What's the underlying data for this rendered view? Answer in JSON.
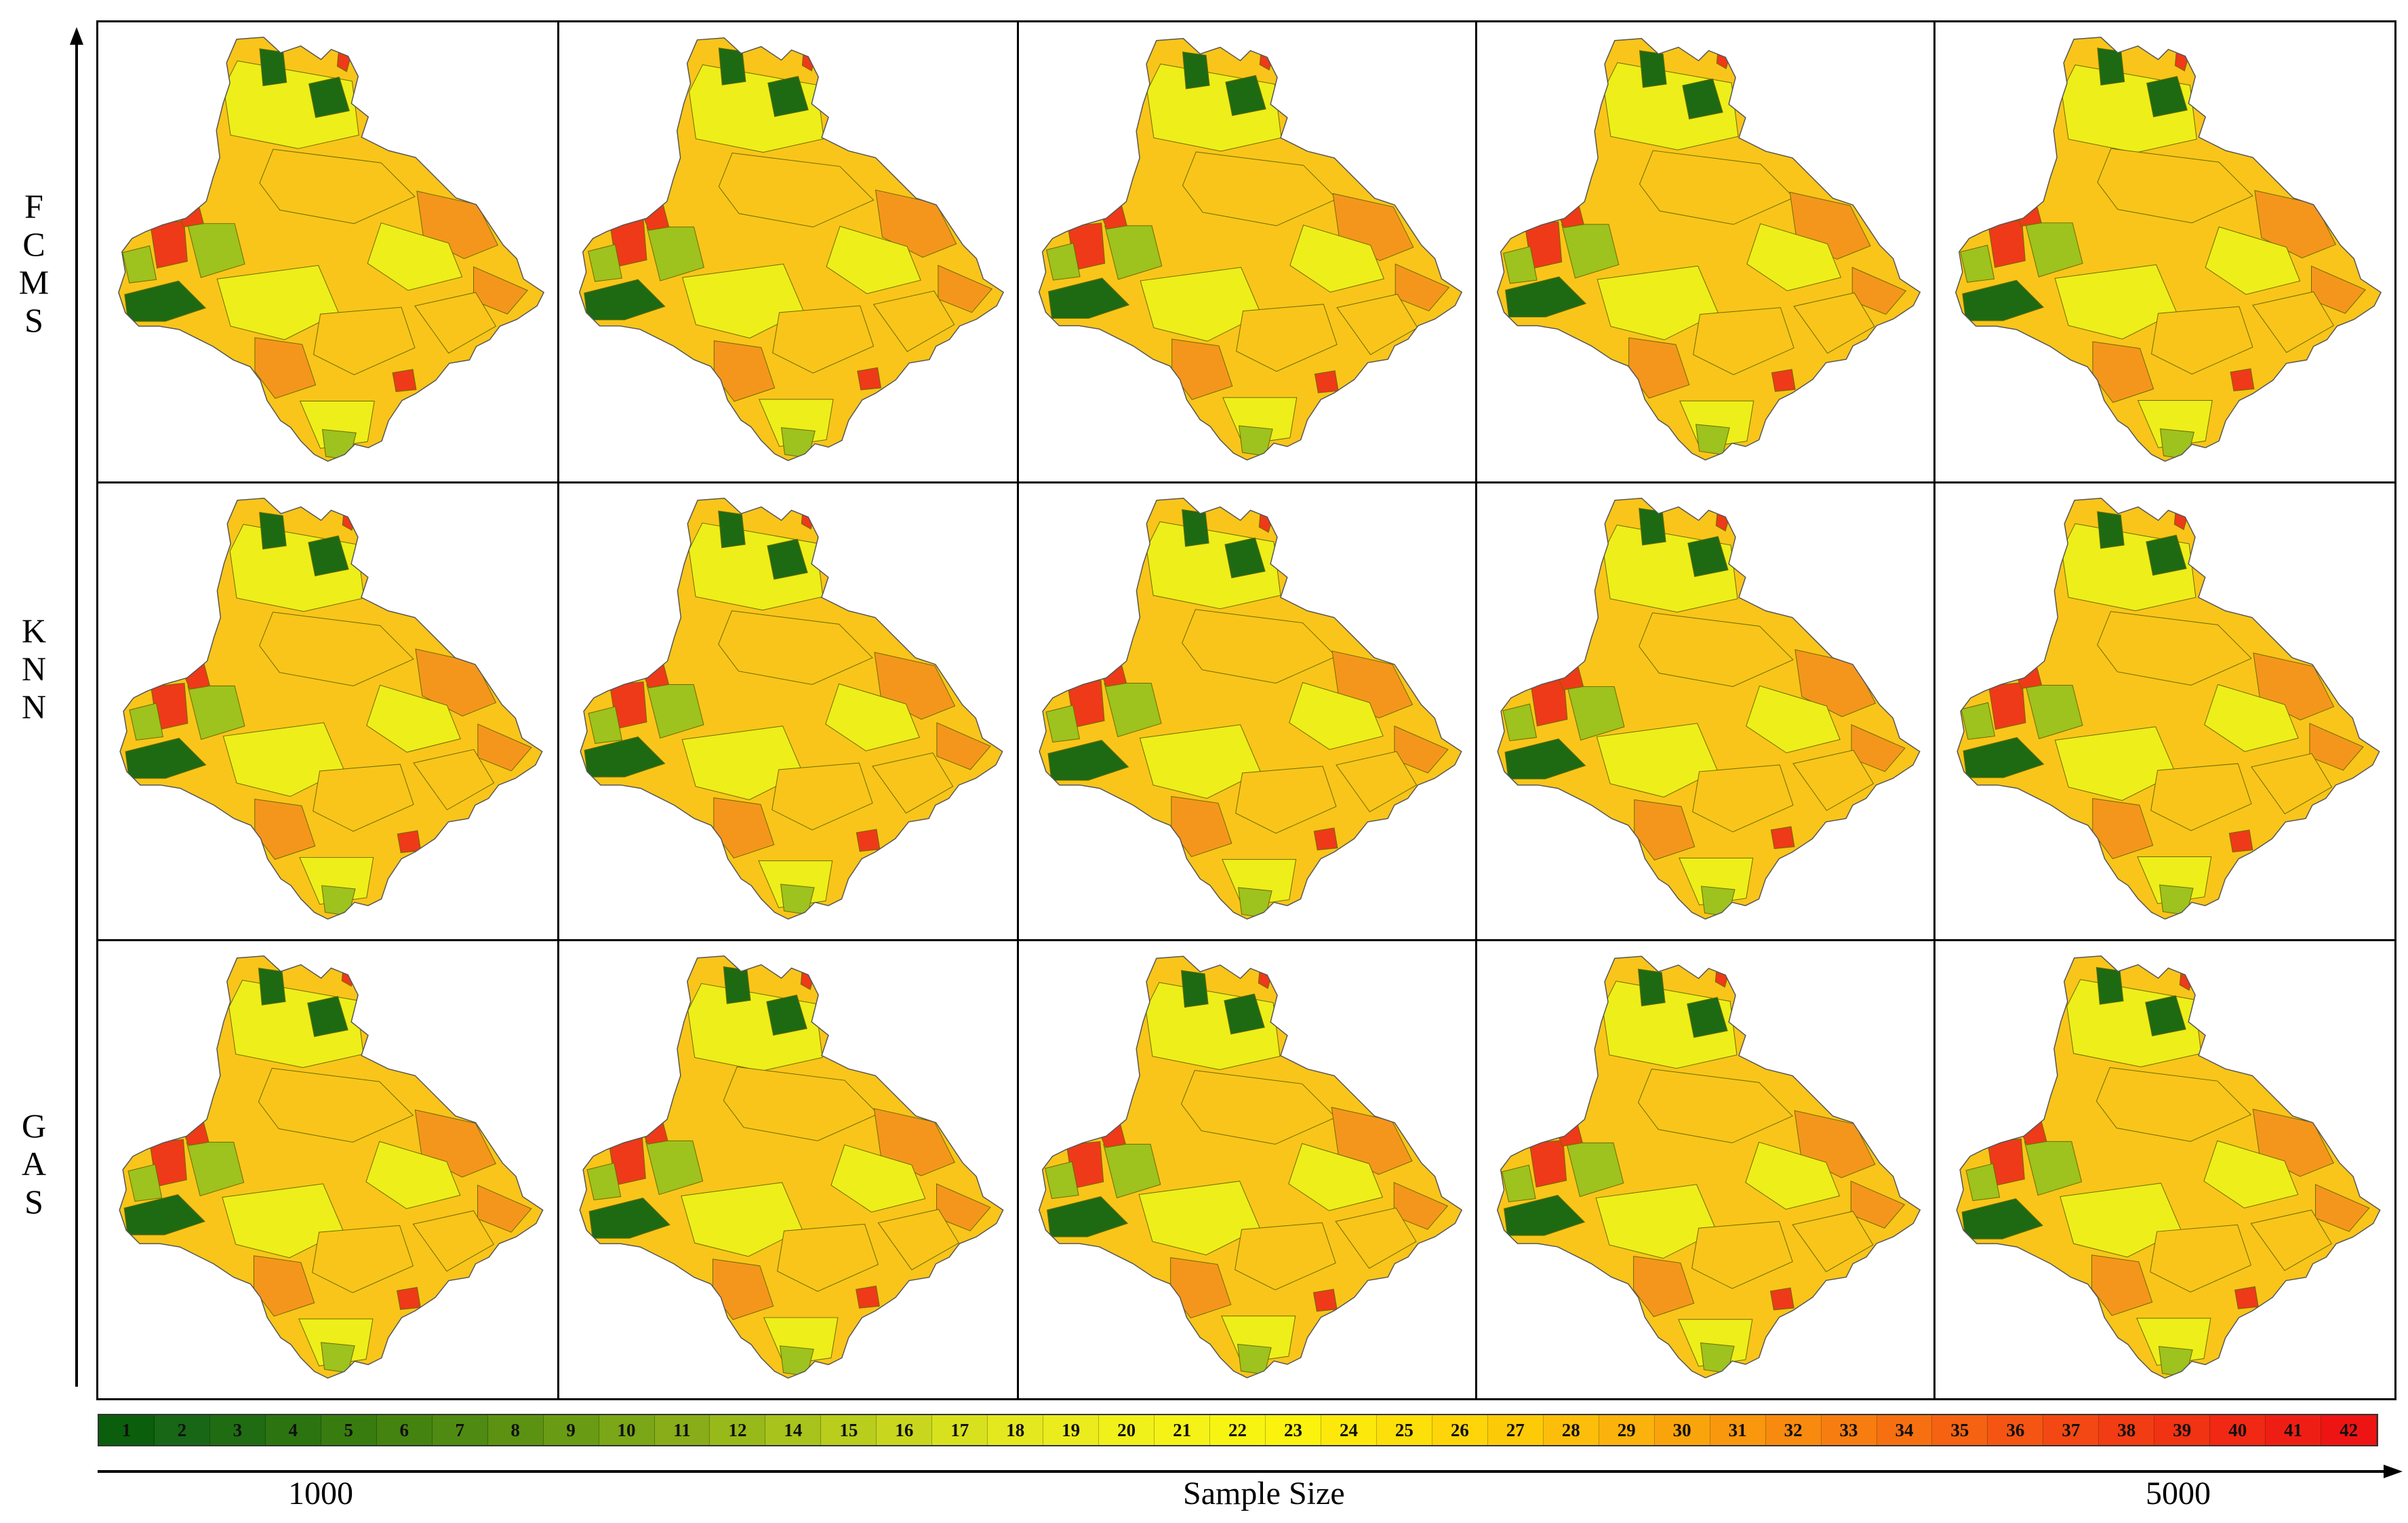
{
  "rows": [
    {
      "id": "fcms",
      "letters": [
        "F",
        "C",
        "M",
        "S"
      ]
    },
    {
      "id": "knn",
      "letters": [
        "K",
        "N",
        "N"
      ]
    },
    {
      "id": "gas",
      "letters": [
        "G",
        "A",
        "S"
      ]
    }
  ],
  "columns": 5,
  "legend": {
    "classes": [
      "1",
      "2",
      "3",
      "4",
      "5",
      "6",
      "7",
      "8",
      "9",
      "10",
      "11",
      "12",
      "14",
      "15",
      "16",
      "17",
      "18",
      "19",
      "20",
      "21",
      "22",
      "23",
      "24",
      "25",
      "26",
      "27",
      "28",
      "29",
      "30",
      "31",
      "32",
      "33",
      "34",
      "35",
      "36",
      "37",
      "38",
      "39",
      "40",
      "41",
      "42"
    ],
    "colors": [
      "#0b5e0b",
      "#176716",
      "#1f6c12",
      "#2c7410",
      "#387c10",
      "#458310",
      "#4f8a12",
      "#5c9212",
      "#6a9b14",
      "#7aa617",
      "#88ad18",
      "#98b91a",
      "#a8c31b",
      "#b8cd1c",
      "#c8d71e",
      "#d8e11e",
      "#e4e81f",
      "#eaec1d",
      "#f0f01a",
      "#f4f216",
      "#f8f412",
      "#fbf20e",
      "#fce90b",
      "#fddf09",
      "#fdd508",
      "#fdca08",
      "#fcbe0a",
      "#fbb20c",
      "#faa40c",
      "#f9970d",
      "#f88a0f",
      "#f77d10",
      "#f67011",
      "#f56212",
      "#f45512",
      "#f34813",
      "#f23c13",
      "#f13213",
      "#f02814",
      "#ef1e14",
      "#ee1414"
    ]
  },
  "x_axis": {
    "start": "1000",
    "title": "Sample Size",
    "end": "5000"
  },
  "colors": {
    "dark_green": "#1e6a12",
    "light_green": "#9ec21e",
    "yellow": "#eeee1a",
    "gold": "#f9c51a",
    "orange": "#f5961c",
    "red": "#ee3a18"
  }
}
